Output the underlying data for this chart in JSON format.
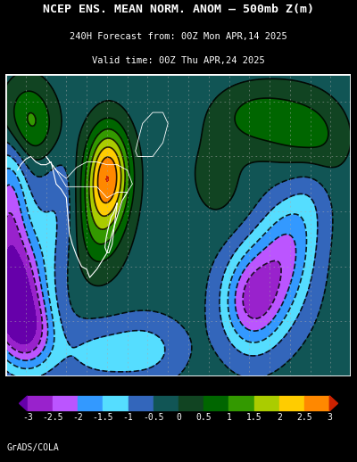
{
  "title_line1": "NCEP ENS. MEAN NORM. ANOM – 500mb Z(m)",
  "title_line2": "240H Forecast from: 00Z Mon APR,14 2025",
  "title_line3": "Valid time: 00Z Thu APR,24 2025",
  "background_color": "#000000",
  "credit": "GrADS/COLA",
  "levels": [
    -3.5,
    -3.0,
    -2.5,
    -2.0,
    -1.5,
    -1.0,
    -0.5,
    0.0,
    0.5,
    1.0,
    1.5,
    2.0,
    2.5,
    3.0,
    3.5
  ],
  "fill_colors": [
    "#6600aa",
    "#9922cc",
    "#bb55ff",
    "#3399ff",
    "#55ddff",
    "#3366bb",
    "#115555",
    "#114422",
    "#006600",
    "#339900",
    "#aacc00",
    "#ffcc00",
    "#ff8800",
    "#cc2200"
  ],
  "cbar_colors": [
    "#9922cc",
    "#bb55ff",
    "#3399ff",
    "#55ddff",
    "#3366bb",
    "#115555",
    "#114422",
    "#006600",
    "#339900",
    "#aacc00",
    "#ffcc00",
    "#ff8800"
  ],
  "cbar_labels": [
    "-3",
    "-2.5",
    "-2",
    "-1.5",
    "-1",
    "-0.5",
    "0",
    "0.5",
    "1",
    "1.5",
    "2",
    "2.5",
    "3"
  ]
}
